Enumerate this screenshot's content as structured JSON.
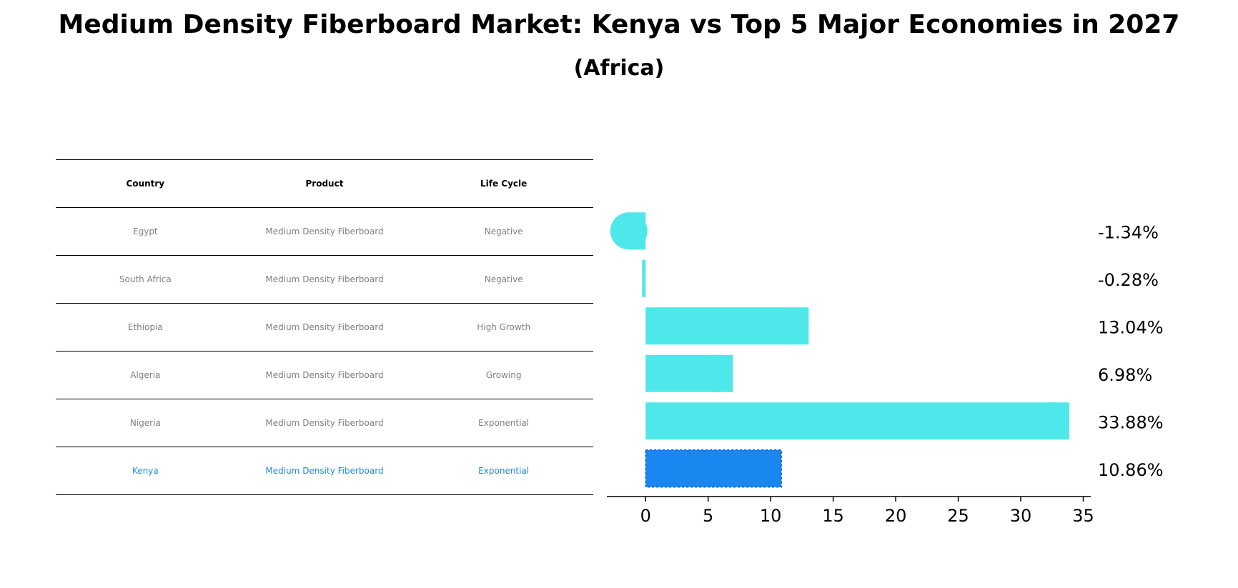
{
  "chart_data": {
    "type": "bar",
    "orientation": "horizontal",
    "title": "Medium Density Fiberboard Market: Kenya vs Top 5 Major Economies in 2027",
    "subtitle": "(Africa)",
    "categories": [
      "Egypt",
      "South Africa",
      "Ethiopia",
      "Algeria",
      "Nigeria",
      "Kenya"
    ],
    "values": [
      -1.34,
      -0.28,
      13.04,
      6.98,
      33.88,
      10.86
    ],
    "value_labels": [
      "-1.34%",
      "-0.28%",
      "13.04%",
      "6.98%",
      "33.88%",
      "10.86%"
    ],
    "highlight": "Kenya",
    "xlim": [
      -3.1,
      35.6
    ],
    "xticks": [
      0,
      5,
      10,
      15,
      20,
      25,
      30,
      35
    ],
    "xlabel": "",
    "ylabel": "",
    "colors": {
      "bar": "#4ee8ea",
      "highlight": "#1a86f0",
      "text": "#000000",
      "muted": "#808080",
      "highlight_text": "#1e88e5"
    }
  },
  "table": {
    "headers": [
      "Country",
      "Product",
      "Life Cycle"
    ],
    "rows": [
      [
        "Egypt",
        "Medium Density Fiberboard",
        "Negative"
      ],
      [
        "South Africa",
        "Medium Density Fiberboard",
        "Negative"
      ],
      [
        "Ethiopia",
        "Medium Density Fiberboard",
        "High Growth"
      ],
      [
        "Algeria",
        "Medium Density Fiberboard",
        "Growing"
      ],
      [
        "Nigeria",
        "Medium Density Fiberboard",
        "Exponential"
      ],
      [
        "Kenya",
        "Medium Density Fiberboard",
        "Exponential"
      ]
    ]
  }
}
